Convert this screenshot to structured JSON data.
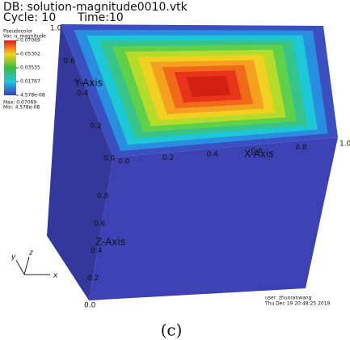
{
  "header": {
    "db": "DB: solution-magnitude0010.vtk",
    "cycle": "Cycle: 10",
    "time": "Time:10"
  },
  "legend": {
    "title": "Pseudocolor",
    "variable": "Var: u_magnitude",
    "labels": [
      "0.07069",
      "0.05302",
      "0.03535",
      "0.01767",
      "4.578e-08"
    ],
    "max": "Max: 0.07069",
    "min": "Min: 4.578e-08"
  },
  "axes": {
    "y": {
      "title": "Y-Axis",
      "ticks": [
        "1.0",
        "0.6",
        "0.4",
        "0.2",
        "0.0"
      ]
    },
    "x": {
      "title": "X-Axis",
      "ticks": [
        "0.0",
        "0.2",
        "0.4",
        "0.6",
        "0.8",
        "1.0"
      ]
    },
    "z": {
      "title": "Z-Axis",
      "ticks": [
        "0.8",
        "0.6",
        "0.4",
        "0.2",
        "0.0"
      ]
    }
  },
  "triad": {
    "x": "x",
    "y": "y",
    "z": "z"
  },
  "footer": {
    "user": "user: zhuoranwang",
    "date": "Thu Dec 19 20:48:25 2019"
  },
  "caption": "(c)"
}
